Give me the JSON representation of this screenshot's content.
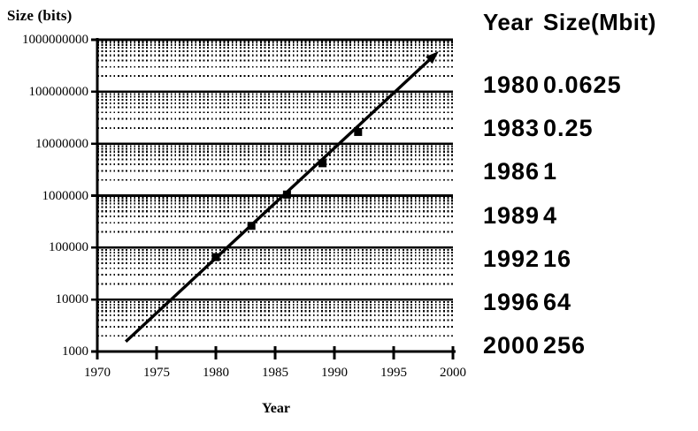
{
  "chart_data": {
    "type": "scatter",
    "title": "Size (bits)",
    "xlabel": "Year",
    "ylabel": "Size (bits)",
    "x_scale": "linear",
    "y_scale": "log",
    "xlim": [
      1970,
      2000
    ],
    "ylim_bits": [
      1000,
      1000000000
    ],
    "x_ticks": [
      1970,
      1975,
      1980,
      1985,
      1990,
      1995,
      2000
    ],
    "y_ticks_bits": [
      1000000000,
      100000000,
      10000000,
      1000000,
      100000,
      10000,
      1000
    ],
    "grid": "major-solid-minor-dotted-log",
    "legend": "none",
    "marker": "filled-square",
    "points": [
      {
        "year": 1980,
        "mbit": 0.0625,
        "bits": 65536
      },
      {
        "year": 1983,
        "mbit": 0.25,
        "bits": 262144
      },
      {
        "year": 1986,
        "mbit": 1,
        "bits": 1048576
      },
      {
        "year": 1989,
        "mbit": 4,
        "bits": 4194304
      },
      {
        "year": 1992,
        "mbit": 16,
        "bits": 16777216
      }
    ],
    "trend_arrow": {
      "x1": 1972.4,
      "y1_bits": 1550,
      "x2": 1998.8,
      "y2_bits": 600000000
    },
    "line_color": "#000000",
    "marker_color": "#000000"
  },
  "table": {
    "headers": [
      "Year",
      "Size(Mbit)"
    ],
    "rows": [
      {
        "year": "1980",
        "size": "0.0625"
      },
      {
        "year": "1983",
        "size": "0.25"
      },
      {
        "year": "1986",
        "size": "1"
      },
      {
        "year": "1989",
        "size": "4"
      },
      {
        "year": "1992",
        "size": "16"
      },
      {
        "year": "1996",
        "size": "64"
      },
      {
        "year": "2000",
        "size": "256"
      }
    ]
  }
}
